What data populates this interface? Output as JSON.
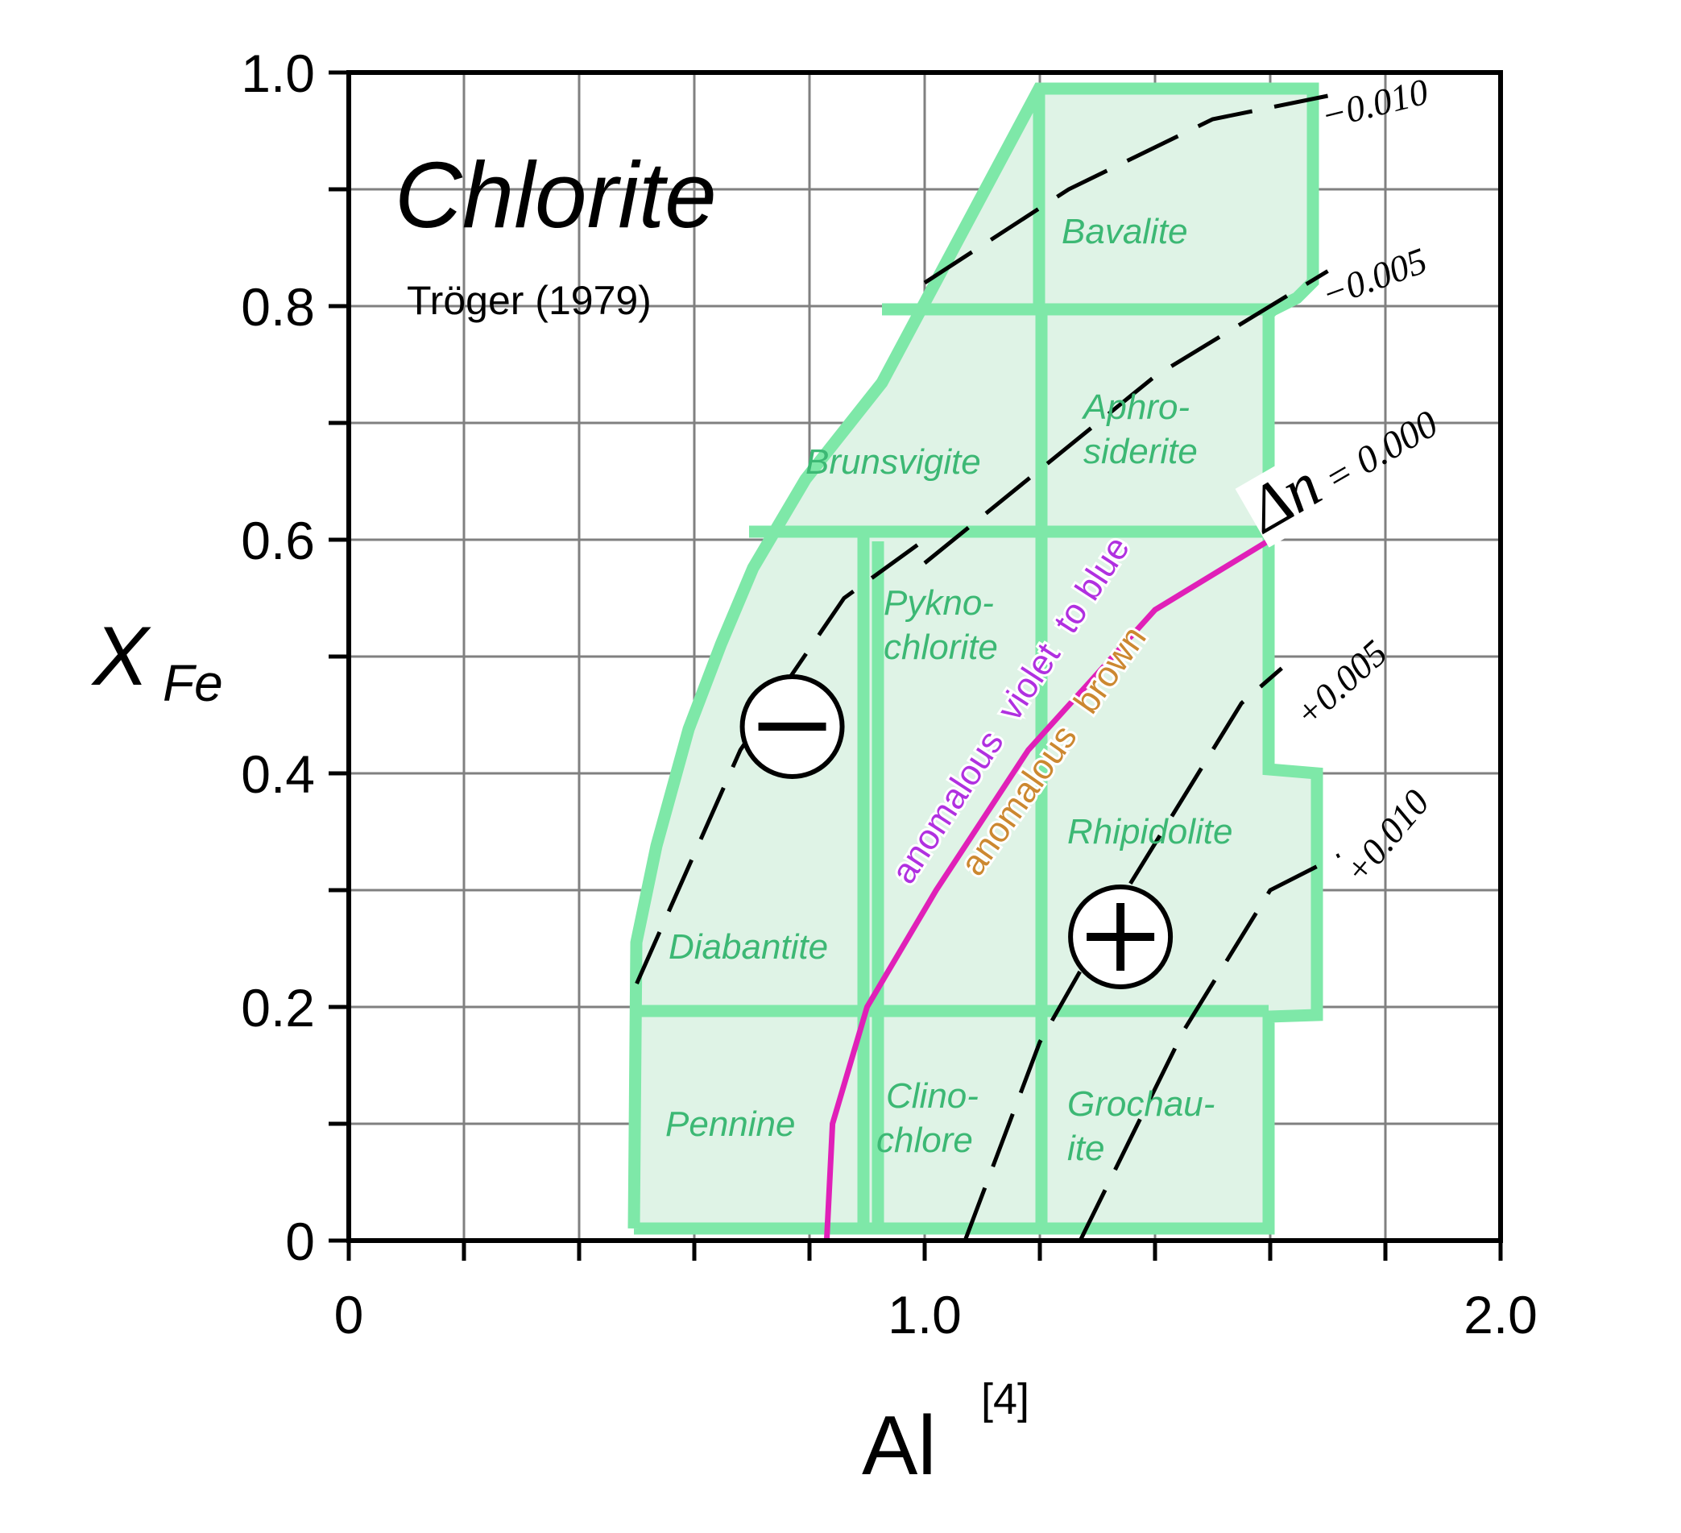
{
  "chart_data": {
    "type": "scatter",
    "title": "Chlorite",
    "subtitle": "Tröger (1979)",
    "xlabel": "Al",
    "xlabel_superscript": "[4]",
    "ylabel": "X",
    "ylabel_subscript": "Fe",
    "xlim": [
      0,
      2.0
    ],
    "ylim": [
      0,
      1.0
    ],
    "x_ticks": [
      {
        "value": 0,
        "label": "0"
      },
      {
        "value": 1.0,
        "label": "1.0"
      },
      {
        "value": 2.0,
        "label": "2.0"
      }
    ],
    "y_ticks": [
      {
        "value": 0,
        "label": "0"
      },
      {
        "value": 0.2,
        "label": "0.2"
      },
      {
        "value": 0.4,
        "label": "0.4"
      },
      {
        "value": 0.6,
        "label": "0.6"
      },
      {
        "value": 0.8,
        "label": "0.8"
      },
      {
        "value": 1.0,
        "label": "1.0"
      }
    ],
    "grid": true,
    "grid_step_x": 0.2,
    "grid_step_y": 0.1,
    "fields": [
      {
        "name": "Bavalite",
        "label": "Bavalite"
      },
      {
        "name": "Brunsvigite",
        "label": "Brunsvigite"
      },
      {
        "name": "Aphrosiderite",
        "label": "Aphro- siderite",
        "lines": [
          "Aphro-",
          "siderite"
        ]
      },
      {
        "name": "Diabantite",
        "label": "Diabantite"
      },
      {
        "name": "Pyknochlorite",
        "label": "Pykno- chlorite",
        "lines": [
          "Pykno-",
          "chlorite"
        ]
      },
      {
        "name": "Rhipidolite",
        "label": "Rhipidolite"
      },
      {
        "name": "Pennine",
        "label": "Pennine"
      },
      {
        "name": "Clinochlore",
        "label": "Clino- chlore",
        "lines": [
          "Clino-",
          "chlore"
        ]
      },
      {
        "name": "Grochauite",
        "label": "Grochau- ite",
        "lines": [
          "Grochau-",
          "ite"
        ]
      }
    ],
    "isolines": [
      {
        "label": "−0.010",
        "dashed": true,
        "points": [
          [
            1.0,
            0.82
          ],
          [
            1.25,
            0.9
          ],
          [
            1.5,
            0.96
          ],
          [
            1.7,
            0.98
          ]
        ]
      },
      {
        "label": "−0.005",
        "dashed": true,
        "points": [
          [
            1.0,
            0.58
          ],
          [
            1.2,
            0.66
          ],
          [
            1.4,
            0.74
          ],
          [
            1.6,
            0.8
          ],
          [
            1.7,
            0.83
          ]
        ]
      },
      {
        "label": "Δn = 0.000",
        "label_prefix": "Δn",
        "label_suffix": "= 0.000",
        "dashed": false,
        "color": "#e020b8",
        "points": [
          [
            0.83,
            0.0
          ],
          [
            0.84,
            0.1
          ],
          [
            0.9,
            0.2
          ],
          [
            1.02,
            0.3
          ],
          [
            1.18,
            0.42
          ],
          [
            1.4,
            0.54
          ],
          [
            1.6,
            0.6
          ]
        ]
      },
      {
        "label": "+0.005",
        "dashed": true,
        "points": [
          [
            1.07,
            0.0
          ],
          [
            1.2,
            0.17
          ],
          [
            1.35,
            0.3
          ],
          [
            1.55,
            0.46
          ],
          [
            1.62,
            0.49
          ]
        ]
      },
      {
        "label": "+0.010",
        "dashed": true,
        "points": [
          [
            1.27,
            0.0
          ],
          [
            1.45,
            0.18
          ],
          [
            1.6,
            0.3
          ],
          [
            1.72,
            0.33
          ]
        ]
      }
    ],
    "dashed_extension": {
      "points": [
        [
          0.5,
          0.22
        ],
        [
          0.68,
          0.42
        ],
        [
          0.86,
          0.55
        ],
        [
          1.0,
          0.6
        ]
      ]
    },
    "curve_annotations": [
      {
        "words": [
          "anomalous",
          "violet",
          "to blue"
        ],
        "colors": [
          "#b030e0",
          "#b030e0",
          "#b030e0"
        ]
      },
      {
        "words": [
          "anomalous",
          "brown"
        ],
        "colors": [
          "#cc8830",
          "#cc8830"
        ]
      }
    ],
    "sign_markers": [
      {
        "name": "negative",
        "symbol": "−",
        "x": 0.77,
        "y": 0.44
      },
      {
        "name": "positive",
        "symbol": "+",
        "x": 1.34,
        "y": 0.26
      }
    ],
    "colors": {
      "field_fill": "#dff3e6",
      "field_border": "#7ee8a8",
      "field_text": "#3cb874",
      "grid": "#808080",
      "curve_zero": "#e020b8",
      "violet_text": "#b030e0",
      "brown_text": "#cc8830"
    }
  }
}
